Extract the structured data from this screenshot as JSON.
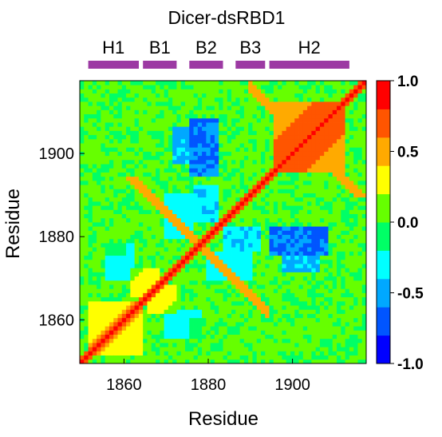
{
  "chart_data": {
    "type": "heatmap",
    "title": "Dicer-dsRBD1",
    "xlabel": "Residue",
    "ylabel": "Residue",
    "x_range": [
      1850,
      1917
    ],
    "y_range": [
      1850,
      1917
    ],
    "x_ticks": [
      1860,
      1880,
      1900
    ],
    "y_ticks": [
      1860,
      1880,
      1900
    ],
    "value_range": [
      -1.0,
      1.0
    ],
    "colorbar_ticks": [
      {
        "value": 1.0,
        "label": "1.0"
      },
      {
        "value": 0.5,
        "label": "0.5"
      },
      {
        "value": 0.0,
        "label": "0.0"
      },
      {
        "value": -0.5,
        "label": "-0.5"
      },
      {
        "value": -1.0,
        "label": "-1.0"
      }
    ],
    "colorbar_colors": [
      "#0000ff",
      "#0055ff",
      "#00a8ff",
      "#00ffff",
      "#00ff66",
      "#66ff00",
      "#ffff00",
      "#ffaa00",
      "#ff5500",
      "#ff0000"
    ],
    "secondary_structure": [
      {
        "label": "H1",
        "start": 1852,
        "end": 1863
      },
      {
        "label": "B1",
        "start": 1865,
        "end": 1872
      },
      {
        "label": "B2",
        "start": 1876,
        "end": 1883
      },
      {
        "label": "B3",
        "start": 1887,
        "end": 1893
      },
      {
        "label": "H2",
        "start": 1895,
        "end": 1913
      }
    ],
    "bar_color": "#9c3aa3",
    "features": {
      "diagonal": {
        "value": 1.0
      },
      "positive_regions": [
        {
          "x": [
            1896,
            1912
          ],
          "y": [
            1896,
            1912
          ],
          "value": 0.75
        },
        {
          "x": [
            1852,
            1864
          ],
          "y": [
            1852,
            1864
          ],
          "value": 0.45
        },
        {
          "x": [
            1862,
            1868
          ],
          "y": [
            1866,
            1872
          ],
          "value": 0.35
        },
        {
          "x": [
            1876,
            1880
          ],
          "y": [
            1856,
            1860
          ],
          "value": 0.3
        }
      ],
      "positive_antidiagonal": {
        "x": [
          1866,
          1894
        ],
        "y_plus_x": 3756,
        "value": 0.5
      },
      "positive_antidiagonal_2": {
        "x": [
          1890,
          1900
        ],
        "y_plus_x": 3806,
        "value": 0.45
      },
      "negative_regions": [
        {
          "x": [
            1872,
            1880
          ],
          "y": [
            1898,
            1906
          ],
          "value": -0.45
        },
        {
          "x": [
            1884,
            1892
          ],
          "y": [
            1877,
            1882
          ],
          "value": -0.35
        },
        {
          "x": [
            1895,
            1908
          ],
          "y": [
            1876,
            1882
          ],
          "value": -0.6
        },
        {
          "x": [
            1856,
            1862
          ],
          "y": [
            1870,
            1878
          ],
          "value": -0.3
        },
        {
          "x": [
            1880,
            1890
          ],
          "y": [
            1870,
            1876
          ],
          "value": -0.3
        }
      ]
    }
  }
}
